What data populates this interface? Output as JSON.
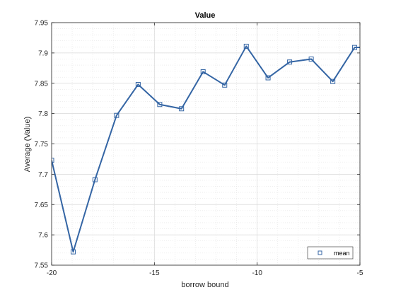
{
  "chart_data": {
    "type": "line",
    "title": "Value",
    "xlabel": "borrow bound",
    "ylabel": "Average (Value)",
    "xlim": [
      -20,
      -5
    ],
    "ylim": [
      7.55,
      7.95
    ],
    "xticks": [
      -20,
      -15,
      -10,
      -5
    ],
    "xtick_labels": [
      "-20",
      "-15",
      "-10",
      "-5"
    ],
    "yticks": [
      7.55,
      7.6,
      7.65,
      7.7,
      7.75,
      7.8,
      7.85,
      7.9,
      7.95
    ],
    "ytick_labels": [
      "7.55",
      "7.6",
      "7.65",
      "7.7",
      "7.75",
      "7.8",
      "7.85",
      "7.9",
      "7.95"
    ],
    "grid": true,
    "minor_grid": true,
    "legend_position": "bottom-right",
    "series": [
      {
        "name": "mean",
        "marker": "square",
        "color": "#3465a4",
        "x": [
          -20,
          -18.95,
          -17.89,
          -16.84,
          -15.79,
          -14.74,
          -13.68,
          -12.63,
          -11.58,
          -10.53,
          -9.47,
          -8.42,
          -7.37,
          -6.32,
          -5.26,
          -4.21
        ],
        "y": [
          7.723,
          7.572,
          7.691,
          7.797,
          7.848,
          7.815,
          7.808,
          7.869,
          7.847,
          7.911,
          7.859,
          7.885,
          7.89,
          7.853,
          7.909,
          7.91
        ]
      }
    ]
  }
}
